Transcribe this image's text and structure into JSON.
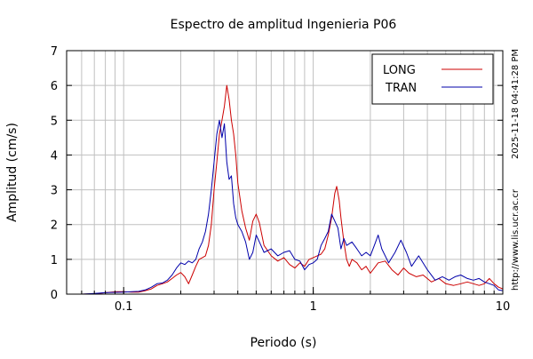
{
  "chart_data": {
    "type": "line",
    "title": "Espectro de amplitud Ingenieria P06",
    "xlabel": "Periodo (s)",
    "ylabel": "Amplitud (cm/s)",
    "x_scale": "log",
    "xlim": [
      0.05,
      10
    ],
    "ylim": [
      0,
      7
    ],
    "x_ticks": [
      {
        "value": 0.1,
        "label": "0.1"
      },
      {
        "value": 1,
        "label": "1"
      },
      {
        "value": 10,
        "label": "10"
      }
    ],
    "y_ticks": [
      {
        "value": 0,
        "label": "0"
      },
      {
        "value": 1,
        "label": "1"
      },
      {
        "value": 2,
        "label": "2"
      },
      {
        "value": 3,
        "label": "3"
      },
      {
        "value": 4,
        "label": "4"
      },
      {
        "value": 5,
        "label": "5"
      },
      {
        "value": 6,
        "label": "6"
      },
      {
        "value": 7,
        "label": "7"
      }
    ],
    "grid": true,
    "legend_position": "top-right",
    "series": [
      {
        "name": "LONG",
        "color": "#cc0000",
        "points": [
          [
            0.05,
            0.0
          ],
          [
            0.06,
            0.0
          ],
          [
            0.07,
            0.01
          ],
          [
            0.08,
            0.04
          ],
          [
            0.09,
            0.07
          ],
          [
            0.1,
            0.07
          ],
          [
            0.11,
            0.06
          ],
          [
            0.12,
            0.06
          ],
          [
            0.13,
            0.1
          ],
          [
            0.14,
            0.15
          ],
          [
            0.15,
            0.25
          ],
          [
            0.16,
            0.3
          ],
          [
            0.17,
            0.35
          ],
          [
            0.18,
            0.45
          ],
          [
            0.19,
            0.55
          ],
          [
            0.2,
            0.62
          ],
          [
            0.21,
            0.5
          ],
          [
            0.22,
            0.3
          ],
          [
            0.23,
            0.55
          ],
          [
            0.24,
            0.8
          ],
          [
            0.25,
            1.0
          ],
          [
            0.26,
            1.05
          ],
          [
            0.27,
            1.1
          ],
          [
            0.28,
            1.4
          ],
          [
            0.29,
            2.0
          ],
          [
            0.3,
            3.0
          ],
          [
            0.31,
            3.8
          ],
          [
            0.32,
            4.6
          ],
          [
            0.33,
            5.0
          ],
          [
            0.34,
            5.4
          ],
          [
            0.35,
            6.0
          ],
          [
            0.36,
            5.6
          ],
          [
            0.37,
            5.0
          ],
          [
            0.38,
            4.6
          ],
          [
            0.39,
            4.0
          ],
          [
            0.4,
            3.2
          ],
          [
            0.42,
            2.4
          ],
          [
            0.44,
            1.9
          ],
          [
            0.46,
            1.55
          ],
          [
            0.48,
            2.1
          ],
          [
            0.5,
            2.3
          ],
          [
            0.52,
            2.05
          ],
          [
            0.55,
            1.4
          ],
          [
            0.6,
            1.1
          ],
          [
            0.65,
            0.95
          ],
          [
            0.7,
            1.05
          ],
          [
            0.75,
            0.85
          ],
          [
            0.8,
            0.75
          ],
          [
            0.85,
            0.9
          ],
          [
            0.9,
            0.8
          ],
          [
            0.95,
            1.0
          ],
          [
            1.0,
            1.05
          ],
          [
            1.05,
            1.1
          ],
          [
            1.1,
            1.15
          ],
          [
            1.15,
            1.3
          ],
          [
            1.2,
            1.7
          ],
          [
            1.25,
            2.2
          ],
          [
            1.3,
            2.9
          ],
          [
            1.33,
            3.1
          ],
          [
            1.37,
            2.7
          ],
          [
            1.4,
            2.2
          ],
          [
            1.45,
            1.5
          ],
          [
            1.5,
            1.0
          ],
          [
            1.55,
            0.8
          ],
          [
            1.6,
            1.0
          ],
          [
            1.7,
            0.9
          ],
          [
            1.8,
            0.7
          ],
          [
            1.9,
            0.8
          ],
          [
            2.0,
            0.6
          ],
          [
            2.2,
            0.9
          ],
          [
            2.4,
            0.95
          ],
          [
            2.6,
            0.7
          ],
          [
            2.8,
            0.55
          ],
          [
            3.0,
            0.75
          ],
          [
            3.2,
            0.6
          ],
          [
            3.5,
            0.5
          ],
          [
            3.8,
            0.55
          ],
          [
            4.2,
            0.35
          ],
          [
            4.6,
            0.45
          ],
          [
            5.0,
            0.3
          ],
          [
            5.5,
            0.25
          ],
          [
            6.0,
            0.3
          ],
          [
            6.5,
            0.35
          ],
          [
            7.0,
            0.3
          ],
          [
            7.5,
            0.25
          ],
          [
            8.0,
            0.3
          ],
          [
            8.5,
            0.45
          ],
          [
            9.0,
            0.3
          ],
          [
            9.5,
            0.2
          ],
          [
            10.0,
            0.15
          ]
        ]
      },
      {
        "name": "TRAN",
        "color": "#0000aa",
        "points": [
          [
            0.05,
            0.0
          ],
          [
            0.06,
            0.0
          ],
          [
            0.07,
            0.02
          ],
          [
            0.08,
            0.04
          ],
          [
            0.09,
            0.05
          ],
          [
            0.1,
            0.06
          ],
          [
            0.11,
            0.07
          ],
          [
            0.12,
            0.08
          ],
          [
            0.13,
            0.12
          ],
          [
            0.14,
            0.2
          ],
          [
            0.15,
            0.3
          ],
          [
            0.16,
            0.32
          ],
          [
            0.17,
            0.4
          ],
          [
            0.18,
            0.55
          ],
          [
            0.19,
            0.75
          ],
          [
            0.2,
            0.9
          ],
          [
            0.21,
            0.85
          ],
          [
            0.22,
            0.95
          ],
          [
            0.23,
            0.9
          ],
          [
            0.24,
            1.0
          ],
          [
            0.25,
            1.3
          ],
          [
            0.26,
            1.5
          ],
          [
            0.27,
            1.8
          ],
          [
            0.28,
            2.3
          ],
          [
            0.29,
            3.0
          ],
          [
            0.3,
            3.8
          ],
          [
            0.31,
            4.6
          ],
          [
            0.32,
            5.0
          ],
          [
            0.33,
            4.5
          ],
          [
            0.34,
            4.9
          ],
          [
            0.35,
            3.8
          ],
          [
            0.36,
            3.3
          ],
          [
            0.37,
            3.4
          ],
          [
            0.38,
            2.6
          ],
          [
            0.39,
            2.2
          ],
          [
            0.4,
            2.0
          ],
          [
            0.42,
            1.8
          ],
          [
            0.44,
            1.5
          ],
          [
            0.46,
            1.0
          ],
          [
            0.48,
            1.2
          ],
          [
            0.5,
            1.7
          ],
          [
            0.52,
            1.5
          ],
          [
            0.55,
            1.2
          ],
          [
            0.6,
            1.3
          ],
          [
            0.65,
            1.1
          ],
          [
            0.7,
            1.2
          ],
          [
            0.75,
            1.25
          ],
          [
            0.8,
            1.0
          ],
          [
            0.85,
            0.95
          ],
          [
            0.9,
            0.7
          ],
          [
            0.95,
            0.85
          ],
          [
            1.0,
            0.9
          ],
          [
            1.05,
            1.0
          ],
          [
            1.1,
            1.4
          ],
          [
            1.15,
            1.6
          ],
          [
            1.2,
            1.8
          ],
          [
            1.25,
            2.3
          ],
          [
            1.3,
            2.1
          ],
          [
            1.35,
            1.9
          ],
          [
            1.4,
            1.3
          ],
          [
            1.45,
            1.6
          ],
          [
            1.5,
            1.4
          ],
          [
            1.6,
            1.5
          ],
          [
            1.7,
            1.3
          ],
          [
            1.8,
            1.1
          ],
          [
            1.9,
            1.2
          ],
          [
            2.0,
            1.1
          ],
          [
            2.1,
            1.4
          ],
          [
            2.2,
            1.7
          ],
          [
            2.3,
            1.3
          ],
          [
            2.5,
            0.9
          ],
          [
            2.7,
            1.2
          ],
          [
            2.9,
            1.55
          ],
          [
            3.1,
            1.2
          ],
          [
            3.3,
            0.8
          ],
          [
            3.6,
            1.1
          ],
          [
            4.0,
            0.7
          ],
          [
            4.4,
            0.4
          ],
          [
            4.8,
            0.5
          ],
          [
            5.2,
            0.4
          ],
          [
            5.6,
            0.5
          ],
          [
            6.0,
            0.55
          ],
          [
            6.5,
            0.45
          ],
          [
            7.0,
            0.4
          ],
          [
            7.5,
            0.45
          ],
          [
            8.0,
            0.35
          ],
          [
            8.5,
            0.3
          ],
          [
            9.0,
            0.25
          ],
          [
            9.5,
            0.12
          ],
          [
            10.0,
            0.1
          ]
        ]
      }
    ],
    "side_texts": [
      "2025-11-18 04:41:28 PM",
      "http://www.lis.ucr.ac.cr"
    ]
  }
}
